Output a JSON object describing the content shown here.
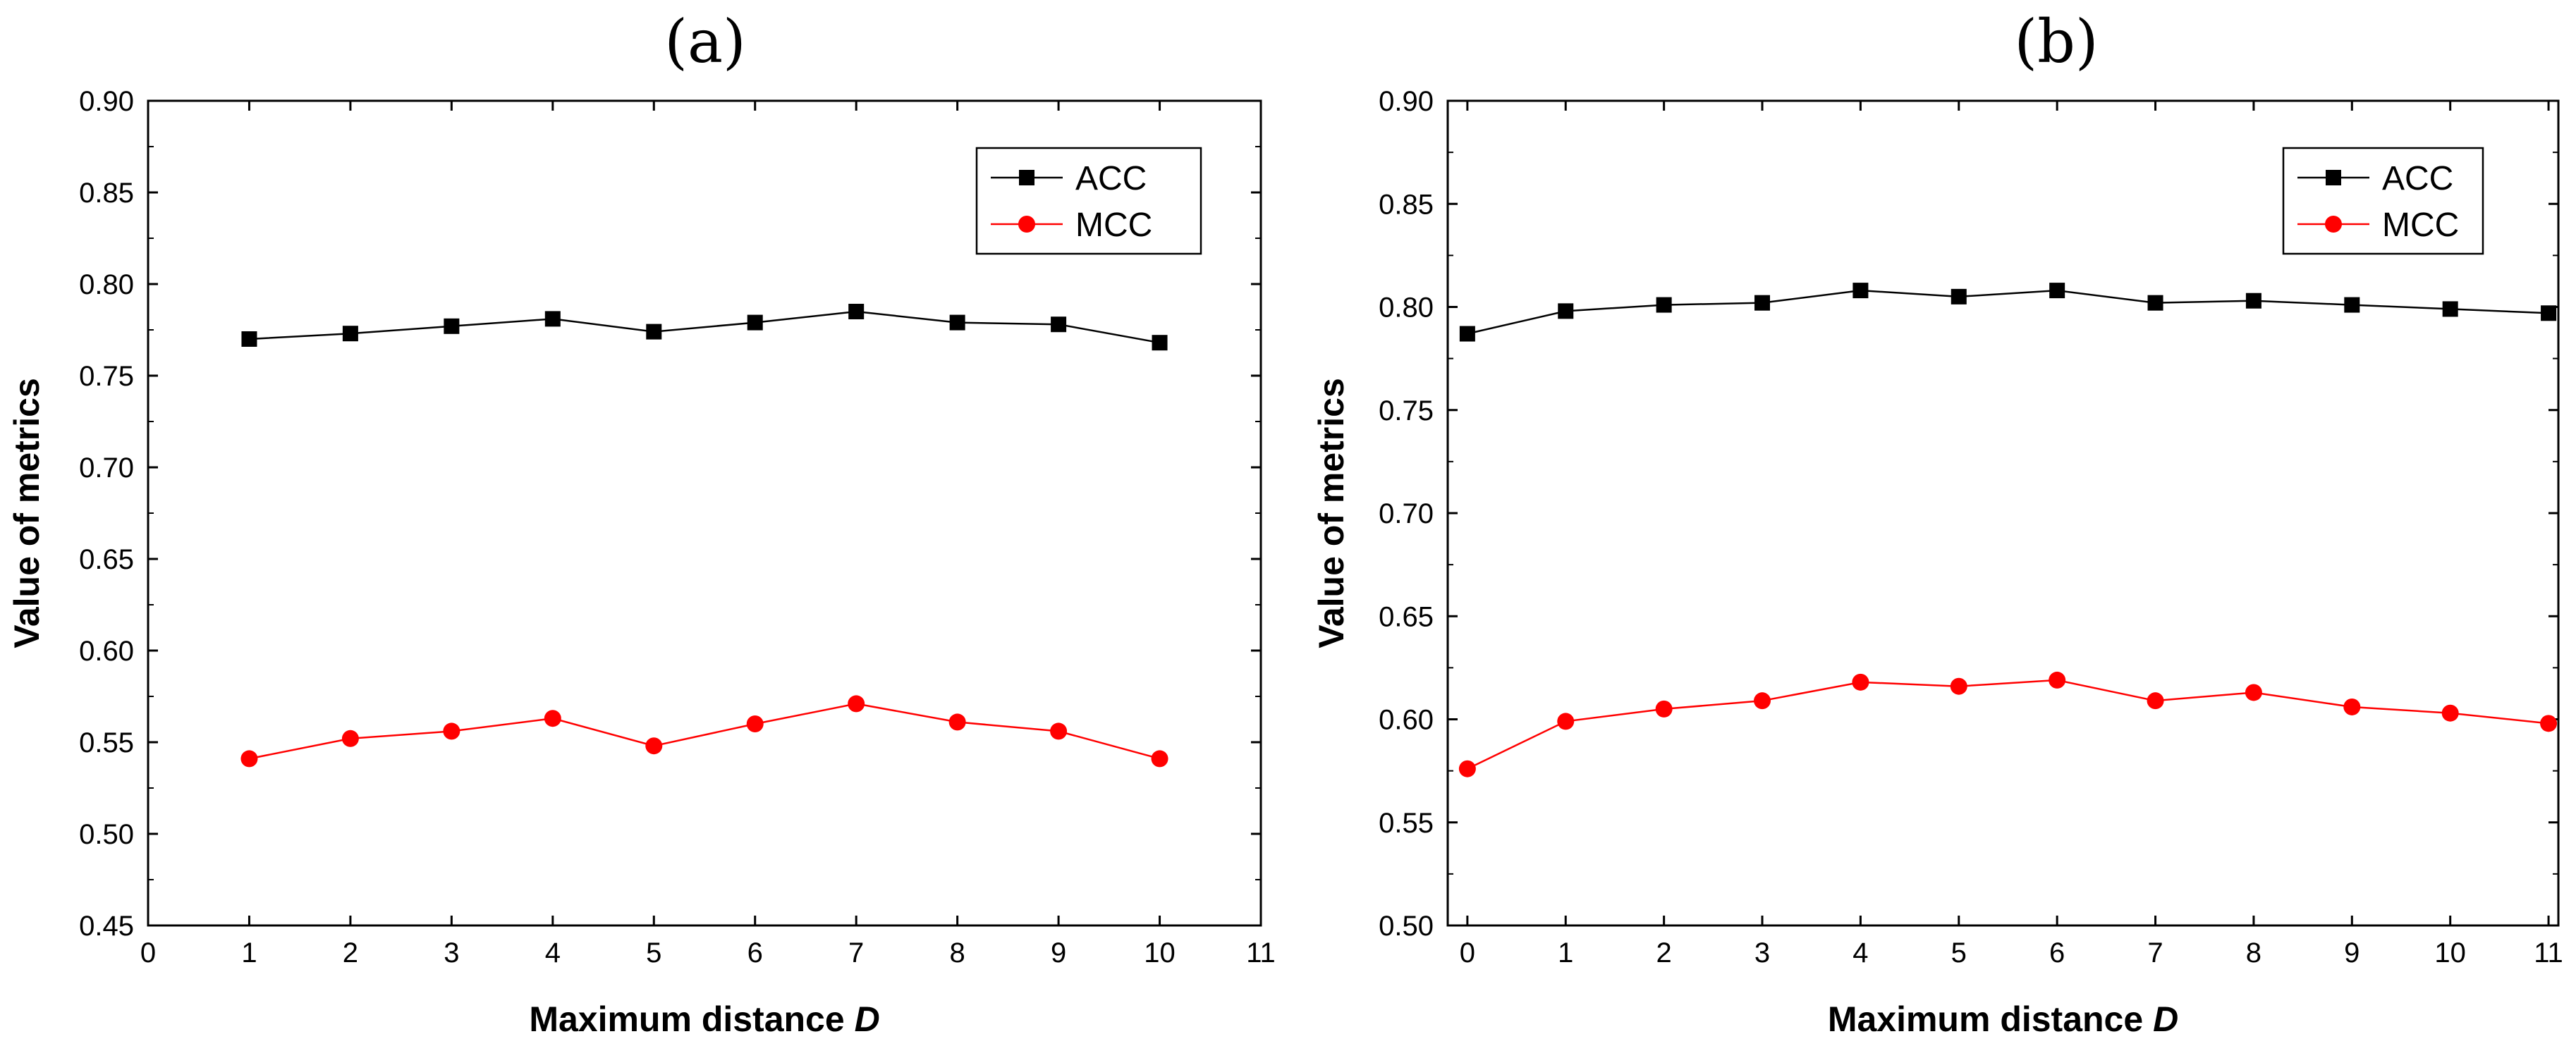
{
  "chart_data": [
    {
      "type": "line",
      "title": "(a)",
      "xlabel": "Maximum distance D",
      "ylabel": "Value of metrics",
      "xlim": [
        0,
        11
      ],
      "ylim": [
        0.45,
        0.9
      ],
      "x_ticks": [
        0,
        1,
        2,
        3,
        4,
        5,
        6,
        7,
        8,
        9,
        10,
        11
      ],
      "y_ticks": [
        0.45,
        0.5,
        0.55,
        0.6,
        0.65,
        0.7,
        0.75,
        0.8,
        0.85,
        0.9
      ],
      "y_tick_decimals": 2,
      "grid": false,
      "legend_position": "top-right",
      "series": [
        {
          "name": "ACC",
          "color": "#000000",
          "marker": "square",
          "x": [
            1,
            2,
            3,
            4,
            5,
            6,
            7,
            8,
            9,
            10
          ],
          "y": [
            0.77,
            0.773,
            0.777,
            0.781,
            0.774,
            0.779,
            0.785,
            0.779,
            0.778,
            0.768
          ]
        },
        {
          "name": "MCC",
          "color": "#ff0000",
          "marker": "circle",
          "x": [
            1,
            2,
            3,
            4,
            5,
            6,
            7,
            8,
            9,
            10
          ],
          "y": [
            0.541,
            0.552,
            0.556,
            0.563,
            0.548,
            0.56,
            0.571,
            0.561,
            0.556,
            0.541
          ]
        }
      ]
    },
    {
      "type": "line",
      "title": "(b)",
      "xlabel": "Maximum distance D",
      "ylabel": "Value of metrics",
      "xlim": [
        -0.2,
        11.1
      ],
      "ylim": [
        0.5,
        0.9
      ],
      "x_ticks": [
        0,
        1,
        2,
        3,
        4,
        5,
        6,
        7,
        8,
        9,
        10,
        11
      ],
      "y_ticks": [
        0.5,
        0.55,
        0.6,
        0.65,
        0.7,
        0.75,
        0.8,
        0.85,
        0.9
      ],
      "y_tick_decimals": 2,
      "grid": false,
      "legend_position": "top-right",
      "series": [
        {
          "name": "ACC",
          "color": "#000000",
          "marker": "square",
          "x": [
            0,
            1,
            2,
            3,
            4,
            5,
            6,
            7,
            8,
            9,
            10,
            11
          ],
          "y": [
            0.787,
            0.798,
            0.801,
            0.802,
            0.808,
            0.805,
            0.808,
            0.802,
            0.803,
            0.801,
            0.799,
            0.797
          ]
        },
        {
          "name": "MCC",
          "color": "#ff0000",
          "marker": "circle",
          "x": [
            0,
            1,
            2,
            3,
            4,
            5,
            6,
            7,
            8,
            9,
            10,
            11
          ],
          "y": [
            0.576,
            0.599,
            0.605,
            0.609,
            0.618,
            0.616,
            0.619,
            0.609,
            0.613,
            0.606,
            0.603,
            0.598
          ]
        }
      ]
    }
  ]
}
